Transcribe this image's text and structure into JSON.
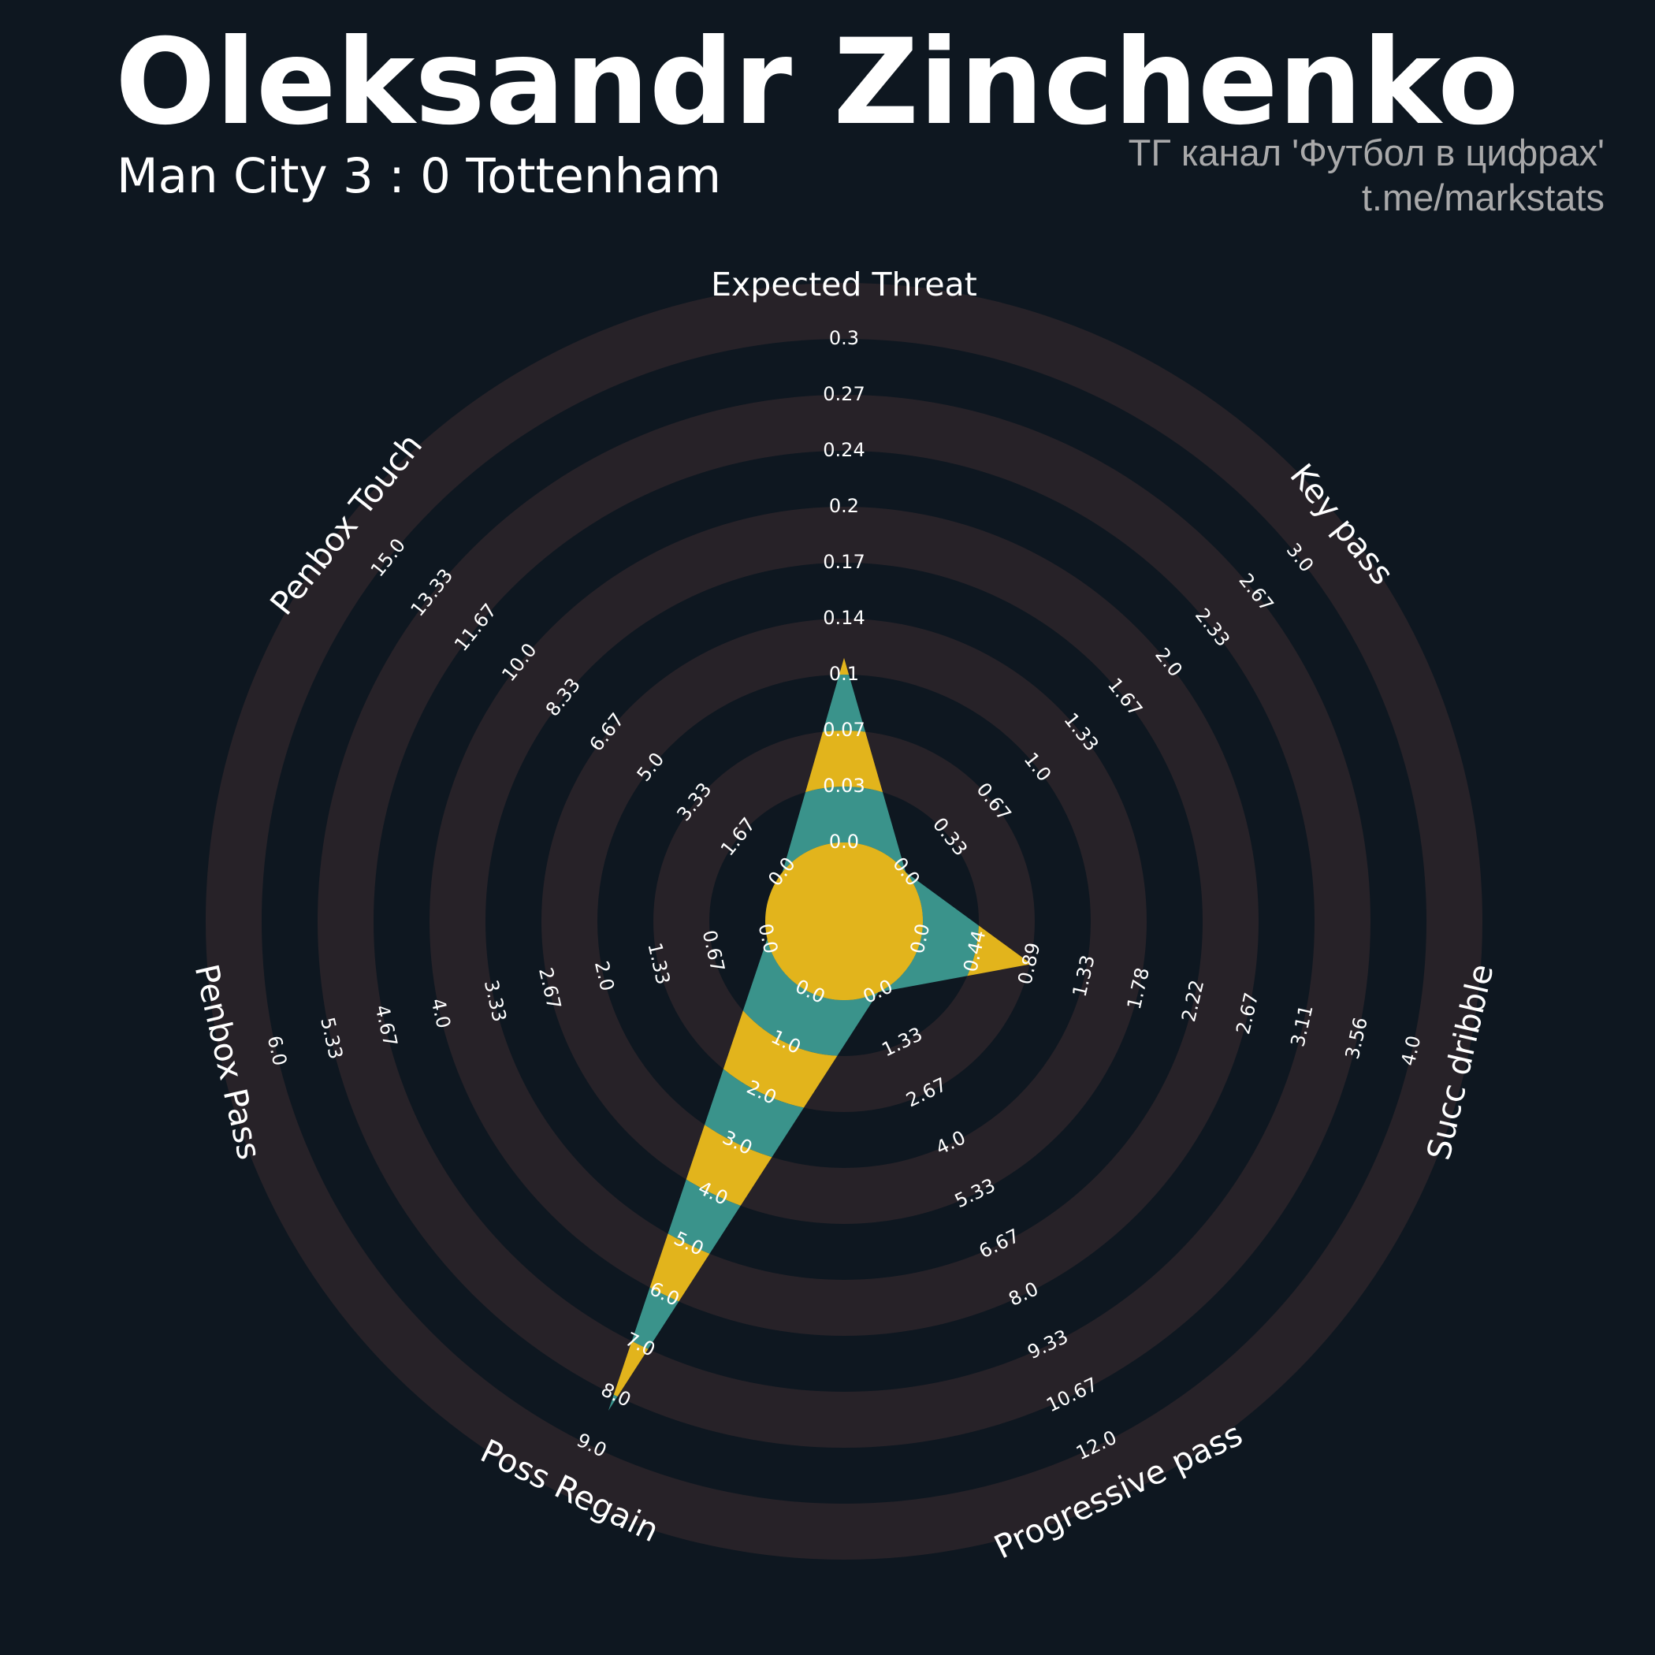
{
  "header": {
    "title": "Oleksandr Zinchenko",
    "subtitle": "Man City 3 : 0 Tottenham",
    "credit_line1": "ТГ канал 'Футбол в цифрах'",
    "credit_line2": "t.me/markstats"
  },
  "colors": {
    "background": "#0e1720",
    "ring": "#272228",
    "fill_teal": "#3a938b",
    "fill_gold": "#e2b41c",
    "text": "#ffffff",
    "credit_text": "#a9a9aa"
  },
  "chart_data": {
    "type": "radar",
    "params": [
      "Expected Threat",
      "Key pass",
      "Succ dribble",
      "Progressive pass",
      "Poss Regain",
      "Penbox Pass",
      "Penbox Touch"
    ],
    "ranges": [
      [
        0.0,
        0.3
      ],
      [
        0.0,
        3.0
      ],
      [
        0.0,
        4.0
      ],
      [
        0.0,
        12.0
      ],
      [
        0.0,
        9.0
      ],
      [
        0.0,
        6.0
      ],
      [
        0.0,
        15.0
      ]
    ],
    "ticks": [
      [
        "0.0",
        "0.03",
        "0.07",
        "0.1",
        "0.14",
        "0.17",
        "0.2",
        "0.24",
        "0.27",
        "0.3"
      ],
      [
        "0.0",
        "0.33",
        "0.67",
        "1.0",
        "1.33",
        "1.67",
        "2.0",
        "2.33",
        "2.67",
        "3.0"
      ],
      [
        "0.0",
        "0.44",
        "0.89",
        "1.33",
        "1.78",
        "2.22",
        "2.67",
        "3.11",
        "3.56",
        "4.0"
      ],
      [
        "0.0",
        "1.33",
        "2.67",
        "4.0",
        "5.33",
        "6.67",
        "8.0",
        "9.33",
        "10.67",
        "12.0"
      ],
      [
        "0.0",
        "1.0",
        "2.0",
        "3.0",
        "4.0",
        "5.0",
        "6.0",
        "7.0",
        "8.0",
        "9.0"
      ],
      [
        "0.0",
        "0.67",
        "1.33",
        "2.0",
        "2.67",
        "3.33",
        "4.0",
        "4.67",
        "5.33",
        "6.0"
      ],
      [
        "0.0",
        "1.67",
        "3.33",
        "5.0",
        "6.67",
        "8.33",
        "10.0",
        "11.67",
        "13.33",
        "15.0"
      ]
    ],
    "values": [
      0.11,
      0.0,
      0.9,
      0.0,
      8.3,
      0.0,
      0.0
    ],
    "grid": "alternating rings"
  }
}
